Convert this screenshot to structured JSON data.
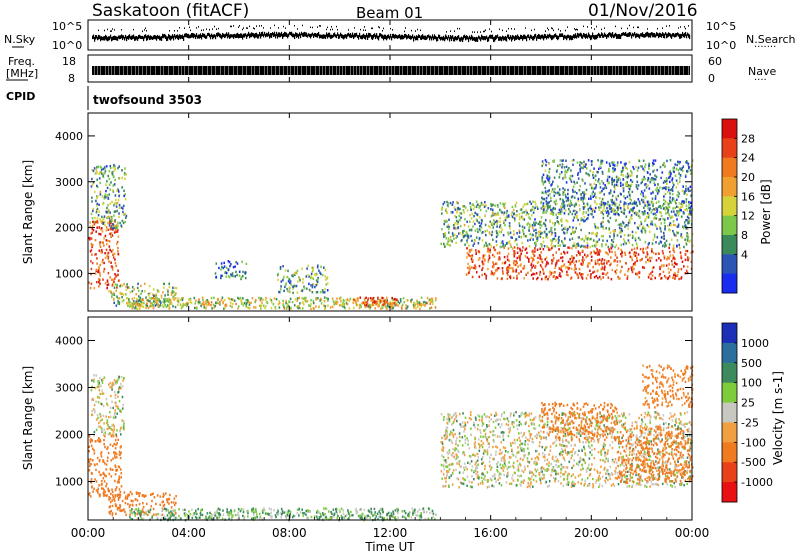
{
  "header": {
    "station": "Saskatoon (fitACF)",
    "beam": "Beam 01",
    "date": "01/Nov/2016"
  },
  "panels": {
    "nsky": {
      "left_label": "N.Sky",
      "left_ticks": [
        "10^5",
        "10^0"
      ],
      "right_ticks": [
        "10^5",
        "10^0"
      ],
      "right_label": "N.Search",
      "right_marker": "·······"
    },
    "freq": {
      "left_label_top": "Freq.",
      "left_label_unit": "[MHz]",
      "left_ticks": [
        "18",
        "8"
      ],
      "right_ticks": [
        "60",
        "0"
      ],
      "right_label": "Nave",
      "right_marker": "····"
    },
    "cpid": {
      "label": "CPID",
      "program": "twofsound 3503"
    }
  },
  "power_panel": {
    "ylabel": "Slant Range [km]",
    "yticks": [
      "1000",
      "2000",
      "3000",
      "4000"
    ],
    "colorbar_label": "Power [dB]",
    "colorbar_ticks": [
      "4",
      "8",
      "12",
      "16",
      "20",
      "24",
      "28"
    ],
    "colors": [
      "#1a2cf0",
      "#2a55b5",
      "#3a8a5c",
      "#7cc84a",
      "#d6d23a",
      "#f0a030",
      "#f07a20",
      "#e84018",
      "#d81010"
    ]
  },
  "velocity_panel": {
    "ylabel": "Slant Range [km]",
    "yticks": [
      "1000",
      "2000",
      "3000",
      "4000"
    ],
    "colorbar_label": "Velocity [m s-1]",
    "colorbar_ticks": [
      "1000",
      "500",
      "100",
      "25",
      "-25",
      "-100",
      "-500",
      "-1000"
    ],
    "colors": [
      "#1c2fb8",
      "#2c6e9c",
      "#3c8a5e",
      "#7ccc3c",
      "#c8c8c0",
      "#f0a040",
      "#f07a20",
      "#e84018",
      "#e81010"
    ]
  },
  "xaxis": {
    "label": "Time UT",
    "ticks": [
      "00:00",
      "04:00",
      "08:00",
      "12:00",
      "16:00",
      "20:00",
      "00:00"
    ]
  },
  "chart_data": [
    {
      "type": "heatmap",
      "title": "Power",
      "xlabel": "Time UT",
      "ylabel": "Slant Range [km]",
      "xlim_hours": [
        0,
        24
      ],
      "ylim_km": [
        180,
        4500
      ],
      "colorbar": {
        "label": "Power [dB]",
        "range": [
          0,
          30
        ],
        "ticks": [
          4,
          8,
          12,
          16,
          20,
          24,
          28
        ]
      },
      "regions": [
        {
          "t0": 0.0,
          "t1": 1.2,
          "r0": 700,
          "r1": 2200,
          "level_db": 24
        },
        {
          "t0": 0.1,
          "t1": 1.5,
          "r0": 2000,
          "r1": 3400,
          "level_db": 10
        },
        {
          "t0": 0.8,
          "t1": 3.5,
          "r0": 300,
          "r1": 800,
          "level_db": 12
        },
        {
          "t0": 5.0,
          "t1": 6.3,
          "r0": 900,
          "r1": 1300,
          "level_db": 6
        },
        {
          "t0": 7.5,
          "t1": 9.5,
          "r0": 600,
          "r1": 1200,
          "level_db": 10
        },
        {
          "t0": 1.5,
          "t1": 13.8,
          "r0": 250,
          "r1": 500,
          "level_db": 14
        },
        {
          "t0": 10.5,
          "t1": 12.3,
          "r0": 300,
          "r1": 500,
          "level_db": 22
        },
        {
          "t0": 14.0,
          "t1": 24.0,
          "r0": 1600,
          "r1": 2600,
          "level_db": 10
        },
        {
          "t0": 15.0,
          "t1": 24.0,
          "r0": 900,
          "r1": 1600,
          "level_db": 24
        },
        {
          "t0": 18.0,
          "t1": 24.0,
          "r0": 2300,
          "r1": 3500,
          "level_db": 8
        }
      ]
    },
    {
      "type": "heatmap",
      "title": "Velocity",
      "xlabel": "Time UT",
      "ylabel": "Slant Range [km]",
      "xlim_hours": [
        0,
        24
      ],
      "ylim_km": [
        180,
        4500
      ],
      "colorbar": {
        "label": "Velocity [m s-1]",
        "range": [
          -1000,
          1000
        ],
        "ticks": [
          1000,
          500,
          100,
          25,
          -25,
          -100,
          -500,
          -1000
        ]
      },
      "regions": [
        {
          "t0": 0.0,
          "t1": 1.3,
          "r0": 700,
          "r1": 2000,
          "velocity": -300
        },
        {
          "t0": 0.1,
          "t1": 1.4,
          "r0": 2000,
          "r1": 3300,
          "velocity": 0
        },
        {
          "t0": 0.8,
          "t1": 3.5,
          "r0": 300,
          "r1": 800,
          "velocity": -200
        },
        {
          "t0": 1.5,
          "t1": 13.8,
          "r0": 200,
          "r1": 450,
          "velocity": 60
        },
        {
          "t0": 14.0,
          "t1": 24.0,
          "r0": 900,
          "r1": 2500,
          "velocity": 0
        },
        {
          "t0": 18.0,
          "t1": 21.0,
          "r0": 1900,
          "r1": 2700,
          "velocity": -200
        },
        {
          "t0": 21.0,
          "t1": 24.0,
          "r0": 1000,
          "r1": 2200,
          "velocity": -300
        },
        {
          "t0": 22.0,
          "t1": 24.0,
          "r0": 2600,
          "r1": 3500,
          "velocity": -150
        }
      ]
    }
  ]
}
